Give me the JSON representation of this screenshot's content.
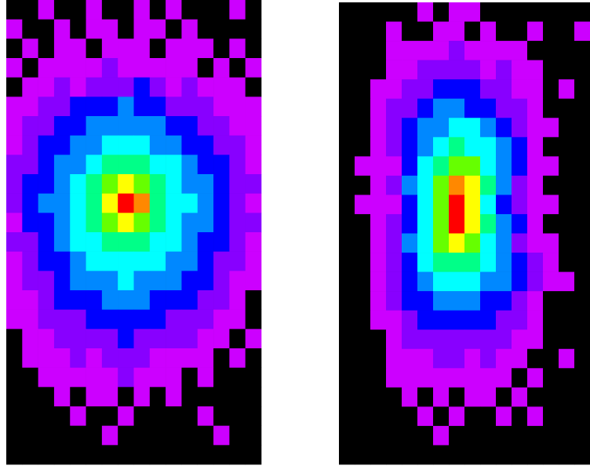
{
  "chart_data": [
    {
      "type": "heatmap",
      "zlim": [
        0,
        10
      ],
      "colorscale": [
        "#000000",
        "#cc00ff",
        "#8800ff",
        "#0000ff",
        "#0088ff",
        "#00ffff",
        "#00ff88",
        "#66ff00",
        "#ffff00",
        "#ff8800",
        "#ff0000"
      ],
      "values": [
        [
          0,
          0,
          1,
          0,
          0,
          1,
          0,
          0,
          1,
          0,
          1,
          0,
          0,
          0,
          1,
          0
        ],
        [
          1,
          0,
          0,
          1,
          0,
          1,
          1,
          0,
          1,
          1,
          0,
          1,
          0,
          0,
          0,
          0
        ],
        [
          0,
          1,
          0,
          1,
          1,
          0,
          1,
          1,
          1,
          0,
          1,
          1,
          1,
          0,
          1,
          0
        ],
        [
          1,
          0,
          1,
          1,
          1,
          1,
          2,
          1,
          1,
          1,
          1,
          1,
          0,
          1,
          0,
          1
        ],
        [
          0,
          1,
          1,
          2,
          1,
          2,
          2,
          2,
          3,
          2,
          1,
          2,
          1,
          1,
          1,
          0
        ],
        [
          1,
          1,
          2,
          2,
          3,
          3,
          3,
          4,
          3,
          3,
          2,
          2,
          2,
          1,
          1,
          1
        ],
        [
          1,
          2,
          2,
          3,
          3,
          4,
          4,
          4,
          4,
          4,
          3,
          3,
          2,
          2,
          1,
          1
        ],
        [
          1,
          2,
          3,
          3,
          4,
          4,
          5,
          5,
          5,
          4,
          4,
          3,
          3,
          2,
          2,
          1
        ],
        [
          2,
          2,
          3,
          4,
          4,
          5,
          6,
          6,
          6,
          5,
          5,
          4,
          3,
          3,
          2,
          1
        ],
        [
          2,
          3,
          3,
          4,
          5,
          6,
          7,
          8,
          7,
          6,
          5,
          4,
          4,
          3,
          2,
          2
        ],
        [
          2,
          3,
          4,
          4,
          5,
          6,
          8,
          10,
          9,
          6,
          5,
          5,
          4,
          3,
          2,
          1
        ],
        [
          1,
          3,
          3,
          4,
          5,
          6,
          7,
          8,
          7,
          6,
          5,
          4,
          4,
          3,
          2,
          2
        ],
        [
          2,
          2,
          3,
          4,
          5,
          5,
          6,
          6,
          6,
          5,
          5,
          4,
          3,
          3,
          2,
          1
        ],
        [
          1,
          2,
          3,
          3,
          4,
          5,
          5,
          5,
          5,
          5,
          4,
          4,
          3,
          2,
          2,
          1
        ],
        [
          1,
          2,
          2,
          3,
          4,
          4,
          4,
          5,
          4,
          4,
          4,
          3,
          3,
          2,
          1,
          1
        ],
        [
          1,
          1,
          2,
          3,
          3,
          3,
          4,
          4,
          4,
          3,
          3,
          3,
          2,
          2,
          1,
          0
        ],
        [
          1,
          1,
          2,
          2,
          2,
          3,
          3,
          3,
          3,
          3,
          2,
          2,
          2,
          1,
          1,
          0
        ],
        [
          0,
          1,
          1,
          2,
          2,
          2,
          2,
          3,
          2,
          2,
          2,
          2,
          1,
          1,
          0,
          1
        ],
        [
          0,
          1,
          1,
          1,
          2,
          1,
          2,
          2,
          2,
          1,
          1,
          1,
          1,
          0,
          1,
          0
        ],
        [
          0,
          0,
          1,
          1,
          1,
          1,
          1,
          2,
          1,
          1,
          1,
          0,
          1,
          0,
          0,
          0
        ],
        [
          0,
          0,
          0,
          1,
          0,
          1,
          1,
          0,
          1,
          0,
          1,
          0,
          0,
          0,
          0,
          0
        ],
        [
          0,
          0,
          0,
          0,
          1,
          0,
          0,
          1,
          0,
          0,
          0,
          0,
          1,
          0,
          0,
          0
        ],
        [
          0,
          0,
          0,
          0,
          0,
          0,
          1,
          0,
          0,
          0,
          0,
          0,
          0,
          1,
          0,
          0
        ],
        [
          0,
          0,
          0,
          0,
          0,
          0,
          0,
          0,
          0,
          0,
          0,
          0,
          0,
          0,
          0,
          0
        ]
      ]
    },
    {
      "type": "heatmap",
      "zlim": [
        0,
        10
      ],
      "colorscale": [
        "#000000",
        "#cc00ff",
        "#8800ff",
        "#0000ff",
        "#0088ff",
        "#00ffff",
        "#00ff88",
        "#66ff00",
        "#ffff00",
        "#ff8800",
        "#ff0000"
      ],
      "values": [
        [
          0,
          0,
          0,
          0,
          0,
          1,
          0,
          1,
          1,
          0,
          0,
          0,
          0,
          0,
          0,
          0
        ],
        [
          0,
          0,
          0,
          1,
          0,
          0,
          1,
          1,
          0,
          1,
          0,
          0,
          1,
          0,
          0,
          1
        ],
        [
          0,
          0,
          0,
          1,
          1,
          1,
          1,
          2,
          1,
          1,
          1,
          1,
          0,
          0,
          0,
          0
        ],
        [
          0,
          0,
          0,
          1,
          1,
          2,
          2,
          2,
          2,
          1,
          2,
          1,
          1,
          0,
          0,
          0
        ],
        [
          0,
          0,
          1,
          1,
          2,
          2,
          3,
          3,
          3,
          2,
          2,
          1,
          1,
          0,
          1,
          0
        ],
        [
          0,
          0,
          1,
          2,
          2,
          3,
          4,
          4,
          3,
          3,
          2,
          2,
          1,
          0,
          0,
          0
        ],
        [
          0,
          0,
          1,
          2,
          3,
          4,
          4,
          5,
          5,
          4,
          3,
          2,
          1,
          1,
          0,
          0
        ],
        [
          0,
          0,
          1,
          2,
          3,
          4,
          5,
          6,
          5,
          5,
          4,
          3,
          1,
          0,
          0,
          0
        ],
        [
          0,
          1,
          1,
          1,
          3,
          5,
          6,
          7,
          7,
          5,
          4,
          3,
          1,
          1,
          0,
          0
        ],
        [
          0,
          0,
          1,
          2,
          4,
          5,
          7,
          9,
          8,
          6,
          4,
          2,
          1,
          0,
          0,
          0
        ],
        [
          0,
          1,
          1,
          1,
          3,
          5,
          7,
          10,
          8,
          5,
          3,
          2,
          1,
          1,
          0,
          0
        ],
        [
          0,
          0,
          1,
          2,
          3,
          5,
          7,
          10,
          8,
          6,
          4,
          3,
          1,
          0,
          0,
          0
        ],
        [
          0,
          0,
          1,
          2,
          4,
          5,
          7,
          8,
          7,
          5,
          4,
          2,
          1,
          1,
          0,
          0
        ],
        [
          0,
          0,
          1,
          2,
          3,
          5,
          6,
          6,
          6,
          5,
          4,
          3,
          2,
          1,
          0,
          0
        ],
        [
          0,
          0,
          1,
          2,
          3,
          4,
          5,
          5,
          5,
          4,
          4,
          3,
          2,
          1,
          1,
          0
        ],
        [
          0,
          0,
          1,
          2,
          3,
          3,
          4,
          4,
          4,
          3,
          3,
          2,
          1,
          0,
          0,
          0
        ],
        [
          0,
          0,
          1,
          1,
          2,
          3,
          3,
          3,
          3,
          3,
          2,
          2,
          1,
          0,
          0,
          0
        ],
        [
          0,
          0,
          0,
          1,
          2,
          2,
          2,
          2,
          2,
          2,
          2,
          1,
          1,
          0,
          0,
          0
        ],
        [
          0,
          0,
          0,
          1,
          1,
          1,
          2,
          2,
          1,
          2,
          1,
          1,
          0,
          0,
          1,
          0
        ],
        [
          0,
          0,
          0,
          1,
          1,
          1,
          1,
          1,
          1,
          1,
          1,
          0,
          1,
          0,
          0,
          0
        ],
        [
          0,
          0,
          0,
          0,
          1,
          0,
          1,
          0,
          1,
          1,
          0,
          1,
          0,
          0,
          0,
          0
        ],
        [
          0,
          0,
          0,
          0,
          0,
          1,
          0,
          1,
          0,
          0,
          1,
          0,
          1,
          0,
          0,
          0
        ],
        [
          0,
          0,
          0,
          0,
          0,
          0,
          1,
          0,
          0,
          0,
          0,
          0,
          0,
          0,
          0,
          0
        ],
        [
          0,
          0,
          0,
          0,
          0,
          0,
          0,
          0,
          0,
          0,
          0,
          0,
          0,
          0,
          0,
          0
        ]
      ]
    }
  ]
}
